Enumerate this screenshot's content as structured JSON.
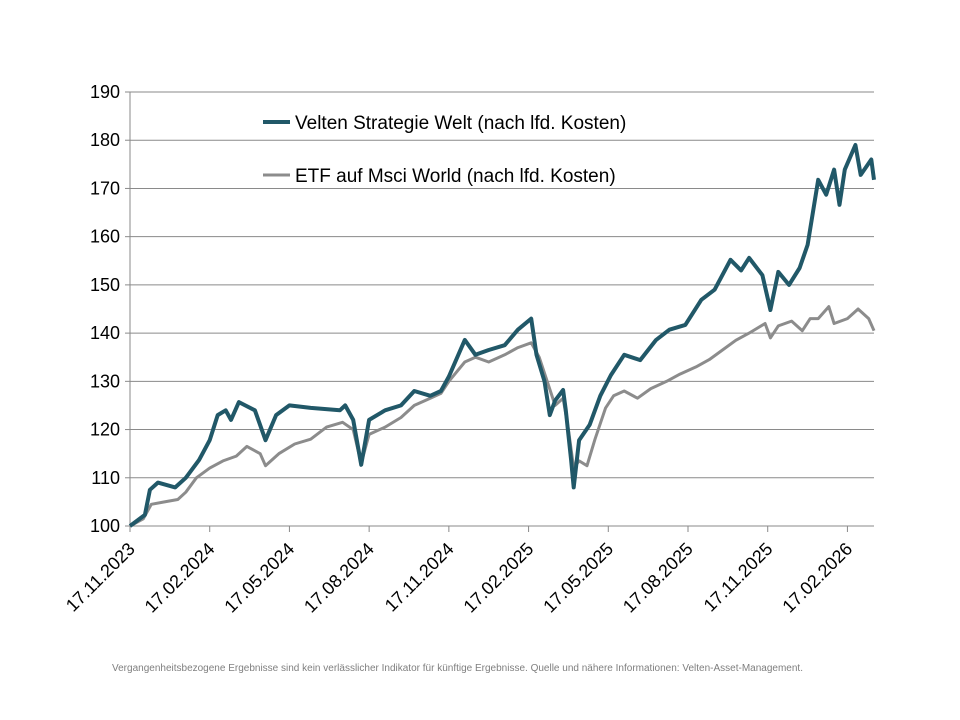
{
  "chart_data": {
    "type": "line",
    "title": "",
    "xlabel": "",
    "ylabel": "",
    "x_unit": "months since 17.11.2023",
    "xlim": [
      0,
      28
    ],
    "ylim": [
      100,
      190
    ],
    "yticks": [
      100,
      110,
      120,
      130,
      140,
      150,
      160,
      170,
      180,
      190
    ],
    "xticks": [
      {
        "x": 0,
        "label": "17.11.2023"
      },
      {
        "x": 3,
        "label": "17.02.2024"
      },
      {
        "x": 6,
        "label": "17.05.2024"
      },
      {
        "x": 9,
        "label": "17.08.2024"
      },
      {
        "x": 12,
        "label": "17.11.2024"
      },
      {
        "x": 15,
        "label": "17.02.2025"
      },
      {
        "x": 18,
        "label": "17.05.2025"
      },
      {
        "x": 21,
        "label": "17.08.2025"
      },
      {
        "x": 24,
        "label": "17.11.2025"
      },
      {
        "x": 27,
        "label": "17.02.2026"
      }
    ],
    "grid": true,
    "legend_position": "top-center",
    "series": [
      {
        "name": "Velten Strategie Welt (nach lfd. Kosten)",
        "color": "#215868",
        "points": [
          [
            0,
            100
          ],
          [
            0.56,
            102.3
          ],
          [
            0.75,
            107.5
          ],
          [
            1.05,
            109
          ],
          [
            1.7,
            108
          ],
          [
            2.1,
            110
          ],
          [
            2.6,
            113.7
          ],
          [
            3.0,
            117.8
          ],
          [
            3.3,
            123
          ],
          [
            3.6,
            124
          ],
          [
            3.8,
            122
          ],
          [
            4.1,
            125.7
          ],
          [
            4.7,
            124
          ],
          [
            5.1,
            117.8
          ],
          [
            5.5,
            123
          ],
          [
            6.0,
            125
          ],
          [
            6.8,
            124.5
          ],
          [
            7.9,
            124
          ],
          [
            8.1,
            125
          ],
          [
            8.4,
            122
          ],
          [
            8.7,
            112.7
          ],
          [
            9.0,
            122
          ],
          [
            9.6,
            124
          ],
          [
            10.2,
            125
          ],
          [
            10.7,
            128
          ],
          [
            11.3,
            127
          ],
          [
            11.7,
            128
          ],
          [
            12.0,
            131
          ],
          [
            12.6,
            138.6
          ],
          [
            13.0,
            135.5
          ],
          [
            13.5,
            136.5
          ],
          [
            14.1,
            137.5
          ],
          [
            14.6,
            140.7
          ],
          [
            15.1,
            143
          ],
          [
            15.3,
            135.5
          ],
          [
            15.6,
            130
          ],
          [
            15.8,
            123
          ],
          [
            16.0,
            126
          ],
          [
            16.3,
            128.2
          ],
          [
            16.4,
            124
          ],
          [
            16.6,
            113.7
          ],
          [
            16.7,
            108
          ],
          [
            16.9,
            117.8
          ],
          [
            17.3,
            121
          ],
          [
            17.7,
            127
          ],
          [
            18.1,
            131.3
          ],
          [
            18.6,
            135.5
          ],
          [
            19.2,
            134.4
          ],
          [
            19.8,
            138.6
          ],
          [
            20.3,
            140.7
          ],
          [
            20.9,
            141.7
          ],
          [
            21.5,
            146.9
          ],
          [
            22.0,
            149
          ],
          [
            22.6,
            155.2
          ],
          [
            23.0,
            153
          ],
          [
            23.3,
            155.6
          ],
          [
            23.8,
            152
          ],
          [
            24.1,
            144.8
          ],
          [
            24.4,
            152.7
          ],
          [
            24.8,
            150
          ],
          [
            25.2,
            153.5
          ],
          [
            25.5,
            158.3
          ],
          [
            25.9,
            171.8
          ],
          [
            26.2,
            168.7
          ],
          [
            26.5,
            173.9
          ],
          [
            26.7,
            166.6
          ],
          [
            26.9,
            173.9
          ],
          [
            27.3,
            179
          ],
          [
            27.5,
            172.8
          ],
          [
            27.9,
            176
          ],
          [
            28.0,
            171.8
          ]
        ]
      },
      {
        "name": "ETF auf Msci World (nach lfd. Kosten)",
        "color": "#8c8c8c",
        "points": [
          [
            0,
            100
          ],
          [
            0.5,
            101.5
          ],
          [
            0.8,
            104.5
          ],
          [
            1.3,
            105
          ],
          [
            1.8,
            105.5
          ],
          [
            2.1,
            107
          ],
          [
            2.5,
            110
          ],
          [
            3.0,
            112
          ],
          [
            3.5,
            113.5
          ],
          [
            4.0,
            114.5
          ],
          [
            4.4,
            116.5
          ],
          [
            4.9,
            115
          ],
          [
            5.1,
            112.5
          ],
          [
            5.6,
            115
          ],
          [
            6.2,
            117
          ],
          [
            6.8,
            118
          ],
          [
            7.4,
            120.5
          ],
          [
            8.0,
            121.5
          ],
          [
            8.4,
            120
          ],
          [
            8.7,
            113
          ],
          [
            9.0,
            119
          ],
          [
            9.6,
            120.5
          ],
          [
            10.2,
            122.5
          ],
          [
            10.7,
            125
          ],
          [
            11.3,
            126.5
          ],
          [
            11.7,
            127.5
          ],
          [
            12.0,
            130
          ],
          [
            12.6,
            134
          ],
          [
            13.0,
            135
          ],
          [
            13.5,
            134
          ],
          [
            14.1,
            135.5
          ],
          [
            14.6,
            137
          ],
          [
            15.1,
            138
          ],
          [
            15.4,
            135
          ],
          [
            15.7,
            130
          ],
          [
            16.0,
            125
          ],
          [
            16.3,
            126.5
          ],
          [
            16.5,
            120
          ],
          [
            16.7,
            112
          ],
          [
            16.9,
            113.5
          ],
          [
            17.2,
            112.5
          ],
          [
            17.5,
            118
          ],
          [
            17.9,
            124.5
          ],
          [
            18.2,
            127
          ],
          [
            18.6,
            128
          ],
          [
            19.1,
            126.5
          ],
          [
            19.6,
            128.5
          ],
          [
            20.2,
            130
          ],
          [
            20.7,
            131.5
          ],
          [
            21.3,
            133
          ],
          [
            21.8,
            134.5
          ],
          [
            22.3,
            136.5
          ],
          [
            22.8,
            138.5
          ],
          [
            23.3,
            140
          ],
          [
            23.9,
            142
          ],
          [
            24.1,
            139
          ],
          [
            24.4,
            141.5
          ],
          [
            24.9,
            142.5
          ],
          [
            25.3,
            140.5
          ],
          [
            25.6,
            143
          ],
          [
            25.9,
            143
          ],
          [
            26.3,
            145.5
          ],
          [
            26.5,
            142
          ],
          [
            27.0,
            143
          ],
          [
            27.4,
            145
          ],
          [
            27.8,
            143
          ],
          [
            28.0,
            140.5
          ]
        ]
      }
    ]
  },
  "footer": "Vergangenheitsbezogene  Ergebnisse sind kein verlässlicher Indikator für künftige Ergebnisse. Quelle und nähere  Informationen:  Velten-Asset-Management."
}
